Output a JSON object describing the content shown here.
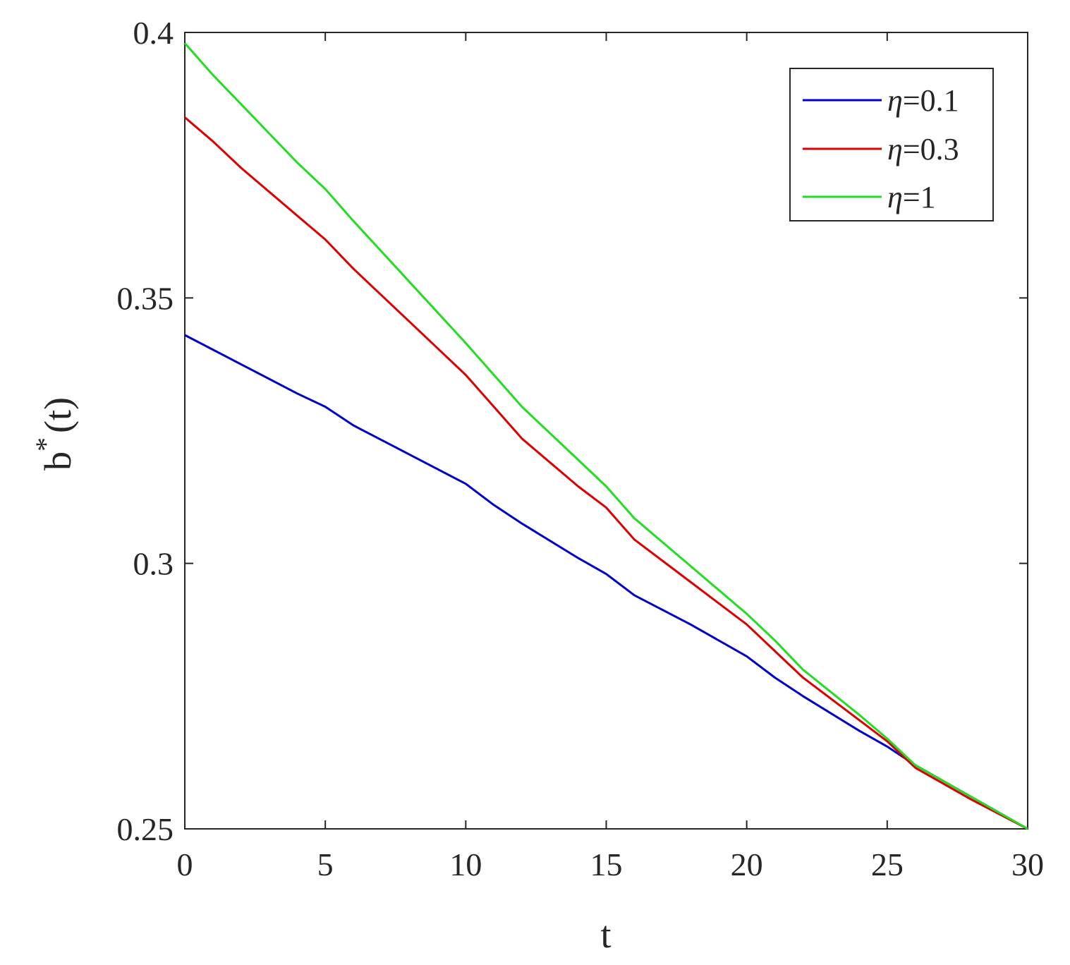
{
  "chart_data": {
    "type": "line",
    "title": "",
    "xlabel": "t",
    "ylabel": {
      "base": "b",
      "superscript": "*",
      "suffix": "(t)"
    },
    "xlim": [
      0,
      30
    ],
    "ylim": [
      0.25,
      0.4
    ],
    "x_ticks": [
      0,
      5,
      10,
      15,
      20,
      25,
      30
    ],
    "y_ticks": [
      0.25,
      0.3,
      0.35,
      0.4
    ],
    "x_tick_labels": [
      "0",
      "5",
      "10",
      "15",
      "20",
      "25",
      "30"
    ],
    "y_tick_labels": [
      "0.25",
      "0.3",
      "0.35",
      "0.4"
    ],
    "grid": false,
    "legend_position": "top-right",
    "series": [
      {
        "name_symbol": "η",
        "name_value": "=0.1",
        "color": "#0000cc",
        "x": [
          0,
          2,
          4,
          5,
          6,
          8,
          10,
          11,
          12,
          14,
          15,
          16,
          18,
          20,
          21,
          22,
          24,
          25,
          26,
          28,
          30
        ],
        "y": [
          0.343,
          0.3375,
          0.332,
          0.3295,
          0.326,
          0.3205,
          0.315,
          0.311,
          0.3075,
          0.301,
          0.298,
          0.294,
          0.2885,
          0.2825,
          0.2785,
          0.275,
          0.2685,
          0.2655,
          0.262,
          0.256,
          0.25
        ]
      },
      {
        "name_symbol": "η",
        "name_value": "=0.3",
        "color": "#dd0000",
        "x": [
          0,
          1,
          2,
          4,
          5,
          6,
          8,
          10,
          11,
          12,
          14,
          15,
          16,
          18,
          20,
          21,
          22,
          24,
          25,
          26,
          28,
          30
        ],
        "y": [
          0.384,
          0.3795,
          0.3745,
          0.3655,
          0.361,
          0.3555,
          0.3455,
          0.3355,
          0.3295,
          0.3235,
          0.3145,
          0.3105,
          0.3045,
          0.2965,
          0.2885,
          0.2835,
          0.2785,
          0.2705,
          0.2665,
          0.2615,
          0.2555,
          0.25
        ]
      },
      {
        "name_symbol": "η",
        "name_value": "=1",
        "color": "#22dd22",
        "x": [
          0,
          1,
          2,
          4,
          5,
          6,
          8,
          10,
          11,
          12,
          14,
          15,
          16,
          18,
          20,
          21,
          22,
          24,
          25,
          26,
          28,
          30
        ],
        "y": [
          0.398,
          0.392,
          0.3865,
          0.3755,
          0.3705,
          0.3645,
          0.353,
          0.3415,
          0.3355,
          0.3295,
          0.3195,
          0.3145,
          0.3085,
          0.2995,
          0.2905,
          0.2855,
          0.28,
          0.2715,
          0.267,
          0.262,
          0.256,
          0.25
        ]
      }
    ]
  }
}
